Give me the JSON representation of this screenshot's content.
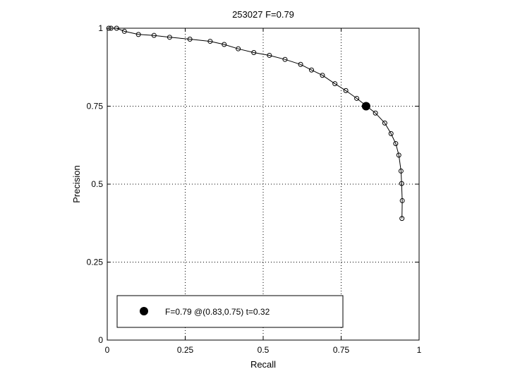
{
  "chart_data": {
    "type": "line",
    "title": "253027 F=0.79",
    "xlabel": "Recall",
    "ylabel": "Precision",
    "xlim": [
      0,
      1
    ],
    "ylim": [
      0,
      1
    ],
    "xticks": [
      "0",
      "0.25",
      "0.5",
      "0.75",
      "1"
    ],
    "yticks": [
      "0",
      "0.25",
      "0.5",
      "0.75",
      "1"
    ],
    "xtick_values": [
      0,
      0.25,
      0.5,
      0.75,
      1
    ],
    "ytick_values": [
      0,
      0.25,
      0.5,
      0.75,
      1
    ],
    "grid": true,
    "series": [
      {
        "x": [
          0.005,
          0.012,
          0.03,
          0.055,
          0.1,
          0.15,
          0.2,
          0.265,
          0.33,
          0.375,
          0.42,
          0.47,
          0.52,
          0.57,
          0.62,
          0.655,
          0.69,
          0.73,
          0.765,
          0.8,
          0.86,
          0.89,
          0.91,
          0.925,
          0.935,
          0.942,
          0.944,
          0.946,
          0.945
        ],
        "y": [
          1.0,
          1.0,
          1.0,
          0.99,
          0.98,
          0.977,
          0.971,
          0.965,
          0.958,
          0.948,
          0.934,
          0.922,
          0.913,
          0.9,
          0.884,
          0.866,
          0.849,
          0.822,
          0.8,
          0.775,
          0.728,
          0.696,
          0.662,
          0.63,
          0.593,
          0.542,
          0.502,
          0.447,
          0.39
        ]
      }
    ],
    "best_point": {
      "x": 0.83,
      "y": 0.75
    },
    "legend": {
      "text": "F=0.79 @(0.83,0.75) t=0.32",
      "position": "bottom-left"
    }
  }
}
